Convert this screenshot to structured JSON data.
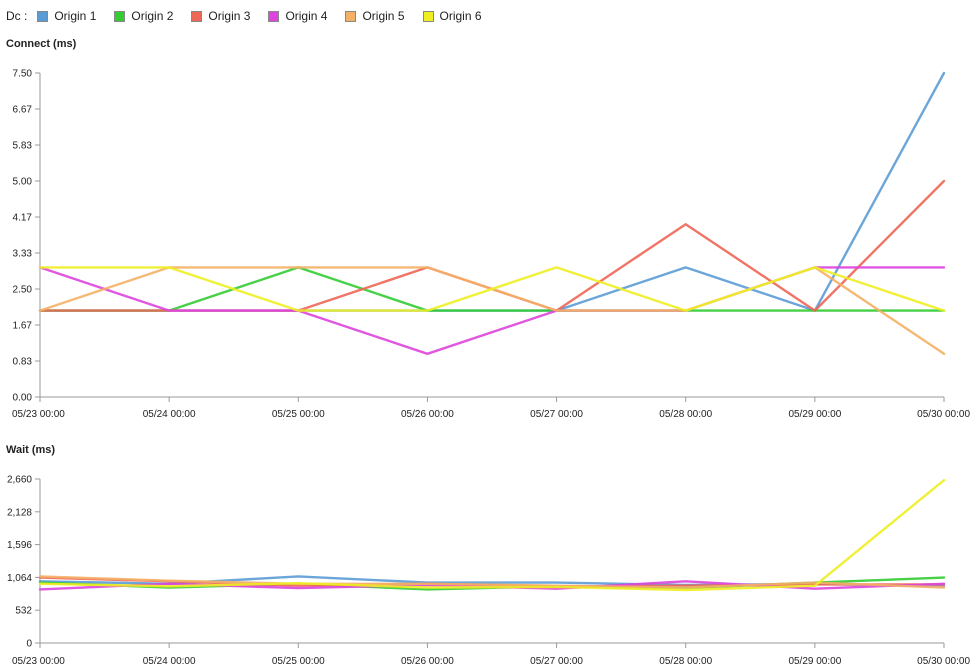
{
  "legend": {
    "label": "Dc :",
    "items": [
      {
        "name": "Origin 1",
        "color": "#5b9bd5"
      },
      {
        "name": "Origin 2",
        "color": "#33cc33"
      },
      {
        "name": "Origin 3",
        "color": "#ee6655"
      },
      {
        "name": "Origin 4",
        "color": "#dd44dd"
      },
      {
        "name": "Origin 5",
        "color": "#f4b066"
      },
      {
        "name": "Origin 6",
        "color": "#eeee22"
      }
    ]
  },
  "chart_data": [
    {
      "type": "line",
      "title": "Connect (ms)",
      "x": [
        "05/23 00:00",
        "05/24 00:00",
        "05/25 00:00",
        "05/26 00:00",
        "05/27 00:00",
        "05/28 00:00",
        "05/29 00:00",
        "05/30 00:00"
      ],
      "ylim": [
        0,
        7.5
      ],
      "yticks": [
        "0.00",
        "0.83",
        "1.67",
        "2.50",
        "3.33",
        "4.17",
        "5.00",
        "5.83",
        "6.67",
        "7.50"
      ],
      "series": [
        {
          "name": "Origin 1",
          "color": "#5b9bd5",
          "values": [
            2,
            2,
            2,
            2,
            2,
            3,
            2,
            7.5
          ]
        },
        {
          "name": "Origin 2",
          "color": "#33cc33",
          "values": [
            2,
            2,
            3,
            2,
            2,
            2,
            2,
            2
          ]
        },
        {
          "name": "Origin 3",
          "color": "#ee6655",
          "values": [
            2,
            2,
            2,
            3,
            2,
            4,
            2,
            5
          ]
        },
        {
          "name": "Origin 4",
          "color": "#dd44dd",
          "values": [
            3,
            2,
            2,
            1,
            2,
            2,
            3,
            3
          ]
        },
        {
          "name": "Origin 5",
          "color": "#f4b066",
          "values": [
            2,
            3,
            3,
            3,
            2,
            2,
            3,
            1
          ]
        },
        {
          "name": "Origin 6",
          "color": "#eeee22",
          "values": [
            3,
            3,
            2,
            2,
            3,
            2,
            3,
            2
          ]
        }
      ]
    },
    {
      "type": "line",
      "title": "Wait (ms)",
      "x": [
        "05/23 00:00",
        "05/24 00:00",
        "05/25 00:00",
        "05/26 00:00",
        "05/27 00:00",
        "05/28 00:00",
        "05/29 00:00",
        "05/30 00:00"
      ],
      "ylim": [
        0,
        2660
      ],
      "yticks": [
        "0",
        "532",
        "1,064",
        "1,596",
        "2,128",
        "2,660"
      ],
      "series": [
        {
          "name": "Origin 1",
          "color": "#5b9bd5",
          "values": [
            1000,
            960,
            1080,
            980,
            980,
            940,
            960,
            920
          ]
        },
        {
          "name": "Origin 2",
          "color": "#33cc33",
          "values": [
            980,
            900,
            960,
            870,
            920,
            890,
            980,
            1060
          ]
        },
        {
          "name": "Origin 3",
          "color": "#ee6655",
          "values": [
            1060,
            1000,
            930,
            960,
            920,
            930,
            950,
            950
          ]
        },
        {
          "name": "Origin 4",
          "color": "#dd44dd",
          "values": [
            870,
            960,
            890,
            940,
            880,
            1000,
            880,
            960
          ]
        },
        {
          "name": "Origin 5",
          "color": "#f4b066",
          "values": [
            1080,
            1010,
            960,
            960,
            930,
            900,
            980,
            900
          ]
        },
        {
          "name": "Origin 6",
          "color": "#eeee22",
          "values": [
            960,
            920,
            970,
            900,
            910,
            860,
            930,
            2640
          ]
        }
      ]
    }
  ]
}
